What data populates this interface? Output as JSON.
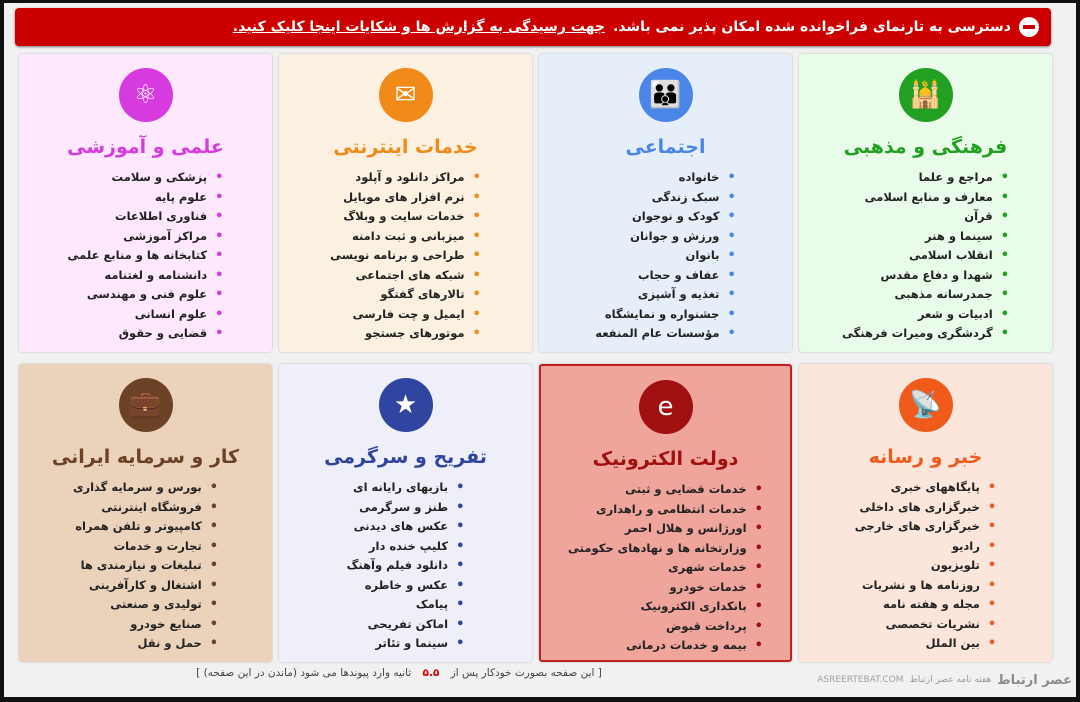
{
  "banner": {
    "icon": "no-entry-icon",
    "text": "دسترسی به تارنمای فراخوانده شده امکان پذیر نمی باشد.",
    "link": "جهت رسیدگی به گزارش ها و شکایات اینجا کلیک کنید."
  },
  "categories": [
    {
      "title": "فرهنگی و مذهبی",
      "icon": "mosque-icon",
      "color": "#22a022",
      "bg": "#e9fbe9",
      "items": [
        "مراجع و علما",
        "معارف و منابع اسلامی",
        "قرآن",
        "سینما و هنر",
        "انقلاب اسلامی",
        "شهدا و دفاع مقدس",
        "جمدرسانه مذهبی",
        "ادبیات و شعر",
        "گردشگری ومیرات فرهنگی"
      ]
    },
    {
      "title": "اجتماعی",
      "icon": "family-icon",
      "color": "#4a86e8",
      "bg": "#e6eef9",
      "items": [
        "خانواده",
        "سبک زندگی",
        "کودک و نوجوان",
        "ورزش و جوانان",
        "بانوان",
        "عفاف و حجاب",
        "تغذیه و آشپزی",
        "جشنواره و نمایشگاه",
        "مؤسسات عام المنفعه"
      ]
    },
    {
      "title": "خدمات اینترنتی",
      "icon": "internet-services-icon",
      "color": "#f08a18",
      "bg": "#fcf1e1",
      "items": [
        "مراکز دانلود و آپلود",
        "نرم افزار های موبایل",
        "خدمات سایت و وبلاگ",
        "میزبانی و ثبت دامنه",
        "طراحی و برنامه نویسی",
        "شبکه های اجتماعی",
        "تالارهای گفتگو",
        "ایمیل و چت فارسی",
        "موتورهای جستجو"
      ]
    },
    {
      "title": "علمی و آموزشی",
      "icon": "atom-icon",
      "color": "#d63be0",
      "bg": "#fde8fd",
      "items": [
        "پزشکی و سلامت",
        "علوم پایه",
        "فناوری اطلاعات",
        "مراکز آموزشی",
        "کتابخانه ها و منابع علمی",
        "دانشنامه و لغتنامه",
        "علوم فنی و مهندسی",
        "علوم انسانی",
        "قضایی و حقوق"
      ]
    },
    {
      "title": "خبر و رسانه",
      "icon": "satellite-dish-icon",
      "color": "#f05a1a",
      "bg": "#fce6dc",
      "items": [
        "پایگاههای خبری",
        "خبرگزاری های داخلی",
        "خبرگزاری های خارجی",
        "رادیو",
        "تلویزیون",
        "روزنامه ها و نشریات",
        "مجله و هفته نامه",
        "نشریات تخصصی",
        "بین الملل"
      ]
    },
    {
      "title": "دولت الکترونیک",
      "icon": "e-government-icon",
      "color": "#a01010",
      "bg": "#efa59c",
      "items": [
        "خدمات قضایی و ثبتی",
        "خدمات انتظامی و راهداری",
        "اورژانس و هلال احمر",
        "وزارتخانه ها و نهادهای حکومتی",
        "خدمات شهری",
        "خدمات خودرو",
        "بانکداری الکترونیک",
        "پرداخت قبوض",
        "بیمه و خدمات درمانی"
      ]
    },
    {
      "title": "تفریح و سرگرمی",
      "icon": "entertainment-icon",
      "color": "#2f45a0",
      "bg": "#eeeff9",
      "items": [
        "بازیهای رایانه ای",
        "طنز و سرگرمی",
        "عکس های دیدنی",
        "کلیپ خنده دار",
        "دانلود فیلم وآهنگ",
        "عکس و خاطره",
        "پیامک",
        "اماکن تفریحی",
        "سینما و تئاتر"
      ]
    },
    {
      "title": "کار و سرمایه ایرانی",
      "icon": "business-icon",
      "color": "#6b4226",
      "bg": "#ebd2bb",
      "items": [
        "بورس و سرمایه گذاری",
        "فروشگاه اینترنتی",
        "کامپیوتر و تلفن همراه",
        "تجارت و خدمات",
        "تبلیغات و نیازمندی ها",
        "اشتغال و کارآفرینی",
        "تولیدی و صنعتی",
        "صنایع خودرو",
        "حمل و نقل"
      ]
    }
  ],
  "footer": {
    "before": "[ این صفحه بصورت خودکار پس از",
    "seconds": "۵.۵",
    "after": "ثانیه وارد پیوندها می شود",
    "stay_link": "(ماندن در این صفحه)",
    "close": "]"
  },
  "watermark": {
    "logo": "عصر ارتباط",
    "domain": "ASREERTEBAT.COM",
    "tagline": "هفته نامه عصر ارتباط"
  }
}
